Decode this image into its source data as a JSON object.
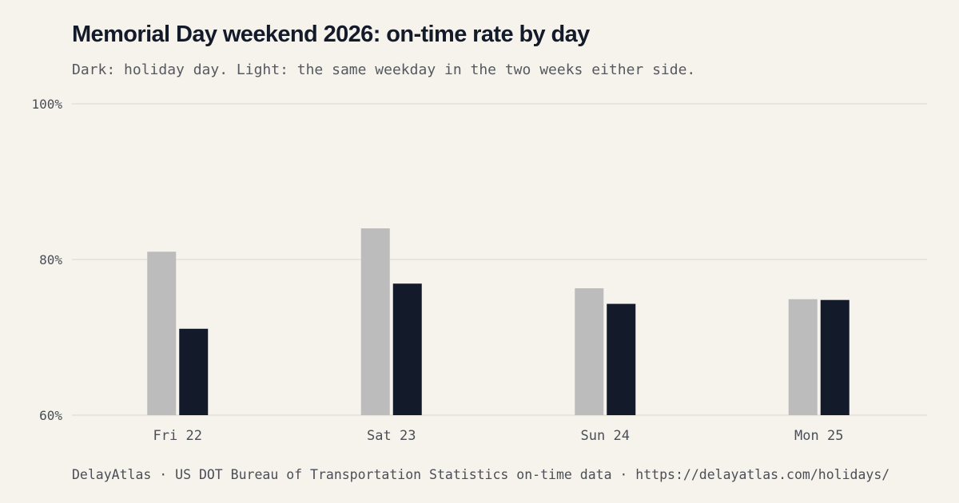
{
  "title": "Memorial Day weekend 2026: on-time rate by day",
  "subtitle": "Dark: holiday day. Light: the same weekday in the two weeks either side.",
  "footer": "DelayAtlas · US DOT Bureau of Transportation Statistics on-time data · https://delayatlas.com/holidays/",
  "colors": {
    "background": "#f6f3ed",
    "holiday": "#131a2a",
    "baseline": "#bcbcbc",
    "grid": "#e3e0da",
    "axis_text": "#4a4e56"
  },
  "chart_data": {
    "type": "bar",
    "title": "Memorial Day weekend 2026: on-time rate by day",
    "categories": [
      "Fri 22",
      "Sat 23",
      "Sun 24",
      "Mon 25"
    ],
    "series": [
      {
        "key": "baseline",
        "values": [
          81.0,
          84.0,
          76.3,
          74.9
        ]
      },
      {
        "key": "holiday",
        "values": [
          71.1,
          76.9,
          74.3,
          74.8
        ]
      }
    ],
    "ylim": [
      60,
      100
    ],
    "yticks": [
      60,
      80,
      100
    ],
    "ytick_labels": [
      "60%",
      "80%",
      "100%"
    ],
    "xlabel": "",
    "ylabel": "",
    "grid": true,
    "legend": "none"
  }
}
